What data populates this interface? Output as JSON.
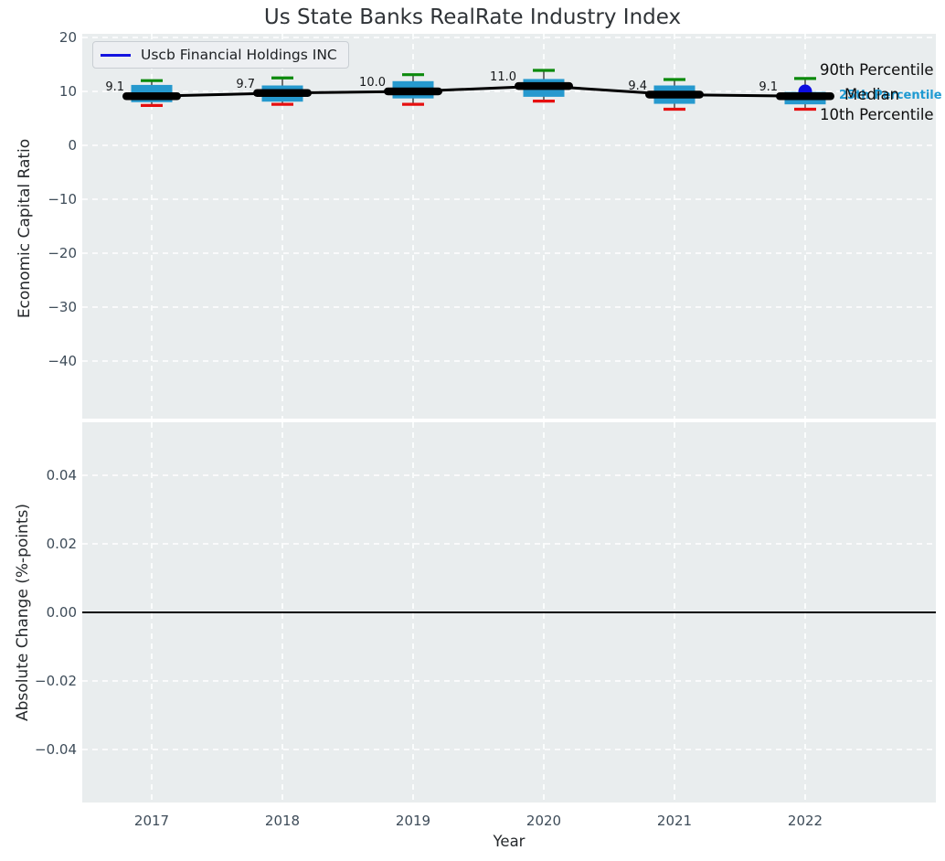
{
  "title": "Us State Banks RealRate Industry Index",
  "legend": {
    "label": "Uscb Financial Holdings INC",
    "line_color": "#1414e0"
  },
  "chart_data": {
    "type": "boxplot-line-combo",
    "title": "Us State Banks RealRate Industry Index",
    "xlabel": "Year",
    "categories": [
      "2017",
      "2018",
      "2019",
      "2020",
      "2021",
      "2022"
    ],
    "top_panel": {
      "ylabel": "Economic Capital Ratio",
      "ylim": [
        -51,
        21
      ],
      "yticks": [
        20,
        10,
        0,
        -10,
        -20,
        -30,
        -40
      ],
      "ytick_labels": [
        "20",
        "10",
        "0",
        "−10",
        "−20",
        "−30",
        "−40"
      ],
      "grid": true,
      "boxes": [
        {
          "year": "2017",
          "p10": 7.4,
          "p25": 8.0,
          "median": 9.1,
          "p75": 11.2,
          "p90": 12.0,
          "median_label": "9.1"
        },
        {
          "year": "2018",
          "p10": 7.6,
          "p25": 8.1,
          "median": 9.7,
          "p75": 11.1,
          "p90": 12.5,
          "median_label": "9.7"
        },
        {
          "year": "2019",
          "p10": 7.6,
          "p25": 8.7,
          "median": 10.0,
          "p75": 11.9,
          "p90": 13.1,
          "median_label": "10.0"
        },
        {
          "year": "2020",
          "p10": 8.2,
          "p25": 9.0,
          "median": 11.0,
          "p75": 12.3,
          "p90": 13.9,
          "median_label": "11.0"
        },
        {
          "year": "2021",
          "p10": 6.7,
          "p25": 7.7,
          "median": 9.4,
          "p75": 11.1,
          "p90": 12.2,
          "median_label": "9.4"
        },
        {
          "year": "2022",
          "p10": 6.7,
          "p25": 7.6,
          "median": 9.1,
          "p75": 9.9,
          "p90": 12.4,
          "median_label": "9.1"
        }
      ],
      "company_series": {
        "name": "Uscb Financial Holdings INC",
        "points": [
          {
            "year": "2022",
            "value": 10.0
          }
        ]
      },
      "annotations": [
        {
          "key": "p90",
          "text": "90th Percentile",
          "color": "#0d0d0d"
        },
        {
          "key": "median",
          "text": "Median",
          "color": "#0d0d0d"
        },
        {
          "key": "p25",
          "text": "25th Percentile",
          "color": "#1f9ad2"
        },
        {
          "key": "p10",
          "text": "10th Percentile",
          "color": "#0d0d0d"
        }
      ]
    },
    "bottom_panel": {
      "ylabel": "Absolute Change (%-points)",
      "ylim": [
        -0.056,
        0.0555
      ],
      "yticks": [
        0.04,
        0.02,
        0.0,
        -0.02,
        -0.04
      ],
      "ytick_labels": [
        "0.04",
        "0.02",
        "0.00",
        "−0.02",
        "−0.04"
      ],
      "zero_line": 0.0,
      "grid": true
    },
    "colors": {
      "box_fill": "#2699ce",
      "p90_cap": "#0c8a0c",
      "p10_cap": "#e60f0f",
      "whisker": "#555555",
      "median_line": "#000000",
      "company_point": "#0d0de0",
      "plot_background": "#e9edee",
      "gridline": "#ffffff",
      "zero_line": "#000000"
    }
  }
}
